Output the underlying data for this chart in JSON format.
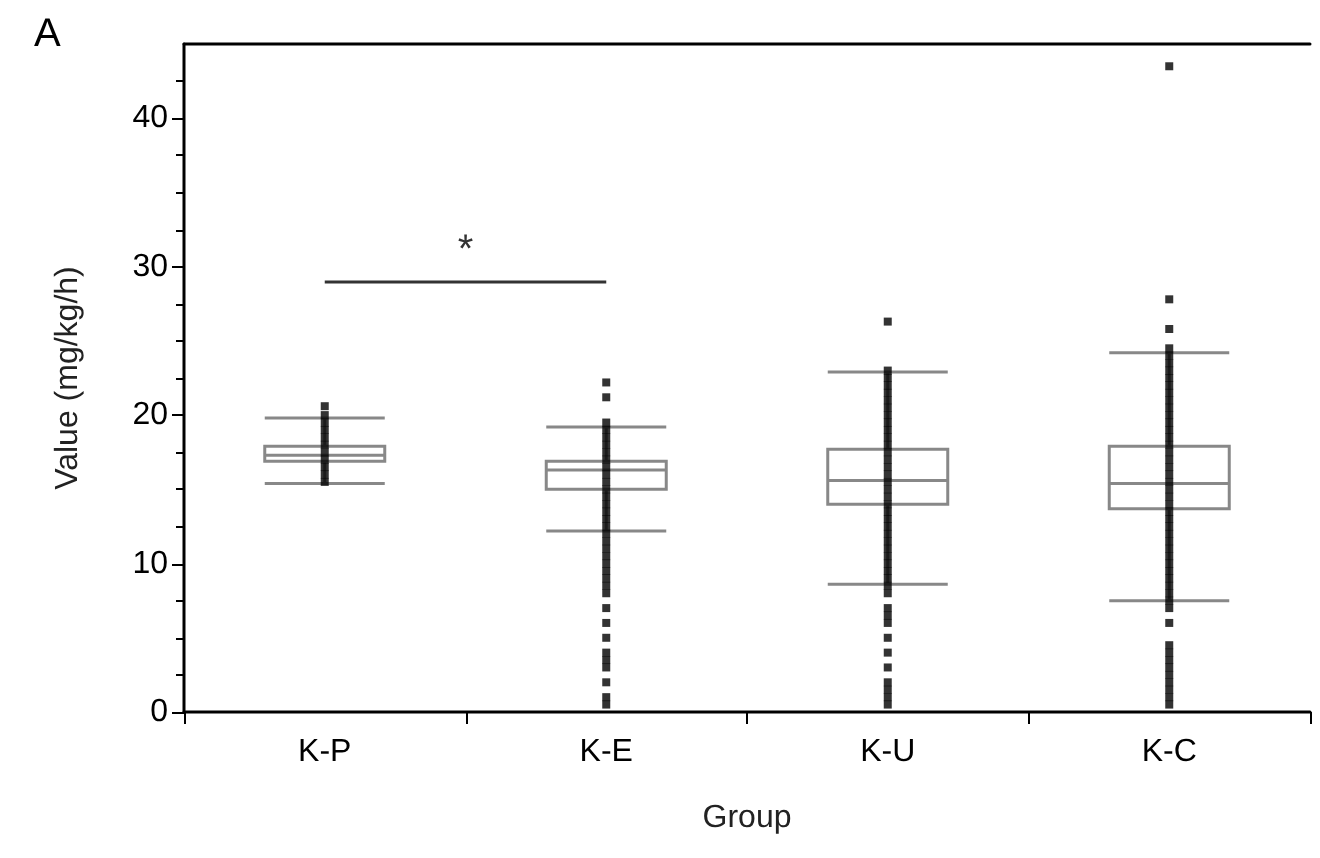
{
  "chart_data": {
    "type": "box",
    "title": "A",
    "xlabel": "Group",
    "ylabel": "Value (mg/kg/h)",
    "categories": [
      "K-P",
      "K-E",
      "K-U",
      "K-C"
    ],
    "ylim": [
      0,
      45
    ],
    "yticks": [
      0,
      10,
      20,
      30,
      40
    ],
    "grid": false,
    "series": [
      {
        "type": "box",
        "color": "#888888",
        "boxes": [
          {
            "low": 15.4,
            "q1": 16.9,
            "median": 17.3,
            "q3": 17.9,
            "high": 19.8,
            "outliers": [
              20.6
            ]
          },
          {
            "low": 12.2,
            "q1": 15.0,
            "median": 16.3,
            "q3": 16.9,
            "high": 19.2,
            "outliers": [
              22.2,
              21.2,
              7,
              6,
              5,
              4,
              3.5,
              3,
              2,
              1,
              0.5
            ]
          },
          {
            "low": 8.6,
            "q1": 14.0,
            "median": 15.6,
            "q3": 17.7,
            "high": 22.9,
            "outliers": [
              26.3,
              7,
              6.5,
              6,
              5,
              4,
              3,
              2,
              1.5,
              1,
              0.5
            ]
          },
          {
            "low": 7.5,
            "q1": 13.7,
            "median": 15.4,
            "q3": 17.9,
            "high": 24.2,
            "outliers": [
              43.5,
              27.8,
              25.8,
              6,
              4.5,
              4,
              3.5,
              3,
              2.5,
              2,
              1.5,
              1,
              0.5
            ]
          }
        ]
      },
      {
        "type": "scatter",
        "color": "#000000",
        "marker": "square",
        "x": [
          "K-P",
          "K-P",
          "K-P",
          "K-P",
          "K-P",
          "K-P",
          "K-P",
          "K-P",
          "K-P",
          "K-P",
          "K-E",
          "K-E",
          "K-E",
          "K-E",
          "K-E",
          "K-E",
          "K-E",
          "K-E",
          "K-E",
          "K-E",
          "K-E",
          "K-E",
          "K-E",
          "K-E",
          "K-E",
          "K-E",
          "K-E",
          "K-E",
          "K-E",
          "K-E",
          "K-E",
          "K-E",
          "K-E",
          "K-E",
          "K-U",
          "K-U",
          "K-U",
          "K-U",
          "K-U",
          "K-U",
          "K-U",
          "K-U",
          "K-U",
          "K-U",
          "K-U",
          "K-U",
          "K-U",
          "K-U",
          "K-U",
          "K-U",
          "K-U",
          "K-U",
          "K-U",
          "K-U",
          "K-U",
          "K-U",
          "K-U",
          "K-U",
          "K-U",
          "K-U",
          "K-U",
          "K-U",
          "K-U",
          "K-U",
          "K-U",
          "K-C",
          "K-C",
          "K-C",
          "K-C",
          "K-C",
          "K-C",
          "K-C",
          "K-C",
          "K-C",
          "K-C",
          "K-C",
          "K-C",
          "K-C",
          "K-C",
          "K-C",
          "K-C",
          "K-C",
          "K-C",
          "K-C",
          "K-C",
          "K-C",
          "K-C",
          "K-C",
          "K-C",
          "K-C",
          "K-C",
          "K-C",
          "K-C",
          "K-C",
          "K-C",
          "K-C",
          "K-C",
          "K-C",
          "K-C",
          "K-C",
          "K-C"
        ],
        "values": [
          15.5,
          16,
          16.5,
          17,
          17.5,
          18,
          18.5,
          19,
          19.5,
          20,
          8,
          8.5,
          9,
          9.5,
          10,
          10.5,
          11,
          11.5,
          12,
          12.5,
          13,
          13.5,
          14,
          14.5,
          15,
          15.5,
          16,
          16.5,
          17,
          17.5,
          18,
          18.5,
          19,
          19.5,
          8,
          8.5,
          9,
          9.5,
          10,
          10.5,
          11,
          11.5,
          12,
          12.5,
          13,
          13.5,
          14,
          14.5,
          15,
          15.5,
          16,
          16.5,
          17,
          17.5,
          18,
          18.5,
          19,
          19.5,
          20,
          20.5,
          21,
          21.5,
          22,
          22.5,
          23,
          7,
          7.5,
          8,
          8.5,
          9,
          9.5,
          10,
          10.5,
          11,
          11.5,
          12,
          12.5,
          13,
          13.5,
          14,
          14.5,
          15,
          15.5,
          16,
          16.5,
          17,
          17.5,
          18,
          18.5,
          19,
          19.5,
          20,
          20.5,
          21,
          21.5,
          22,
          22.5,
          23,
          23.5,
          24,
          24.5
        ]
      }
    ],
    "ref_lines": [
      {
        "axis": "y",
        "value": 29,
        "label": "*"
      }
    ]
  }
}
